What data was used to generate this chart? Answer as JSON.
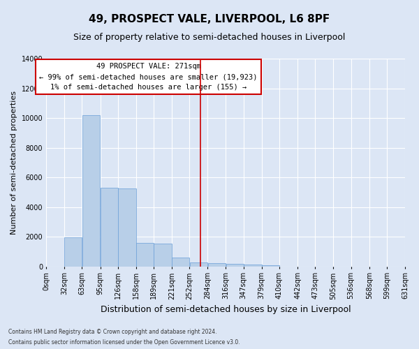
{
  "title": "49, PROSPECT VALE, LIVERPOOL, L6 8PF",
  "subtitle": "Size of property relative to semi-detached houses in Liverpool",
  "xlabel": "Distribution of semi-detached houses by size in Liverpool",
  "ylabel": "Number of semi-detached properties",
  "property_size": 271,
  "annotation_line1": "49 PROSPECT VALE: 271sqm",
  "annotation_line2": "← 99% of semi-detached houses are smaller (19,923)",
  "annotation_line3": "1% of semi-detached houses are larger (155) →",
  "footer_line1": "Contains HM Land Registry data © Crown copyright and database right 2024.",
  "footer_line2": "Contains public sector information licensed under the Open Government Licence v3.0.",
  "bar_color": "#b8cfe8",
  "bar_edge_color": "#6a9fd8",
  "line_color": "#cc0000",
  "annotation_box_edge": "#cc0000",
  "annotation_box_face": "#ffffff",
  "background_color": "#dce6f5",
  "plot_background": "#dce6f5",
  "grid_color": "#ffffff",
  "bin_edges": [
    0,
    32,
    63,
    95,
    126,
    158,
    189,
    221,
    252,
    284,
    316,
    347,
    379,
    410,
    442,
    473,
    505,
    536,
    568,
    599,
    631
  ],
  "bin_labels": [
    "0sqm",
    "32sqm",
    "63sqm",
    "95sqm",
    "126sqm",
    "158sqm",
    "189sqm",
    "221sqm",
    "252sqm",
    "284sqm",
    "316sqm",
    "347sqm",
    "379sqm",
    "410sqm",
    "442sqm",
    "473sqm",
    "505sqm",
    "536sqm",
    "568sqm",
    "599sqm",
    "631sqm"
  ],
  "bar_heights": [
    0,
    1950,
    10200,
    5300,
    5250,
    1600,
    1550,
    600,
    275,
    200,
    150,
    100,
    50,
    0,
    0,
    0,
    0,
    0,
    0,
    0
  ],
  "ylim": [
    0,
    14000
  ],
  "yticks": [
    0,
    2000,
    4000,
    6000,
    8000,
    10000,
    12000,
    14000
  ],
  "title_fontsize": 11,
  "subtitle_fontsize": 9,
  "xlabel_fontsize": 9,
  "ylabel_fontsize": 8,
  "tick_fontsize": 7,
  "annotation_fontsize": 7.5,
  "footer_fontsize": 5.5
}
